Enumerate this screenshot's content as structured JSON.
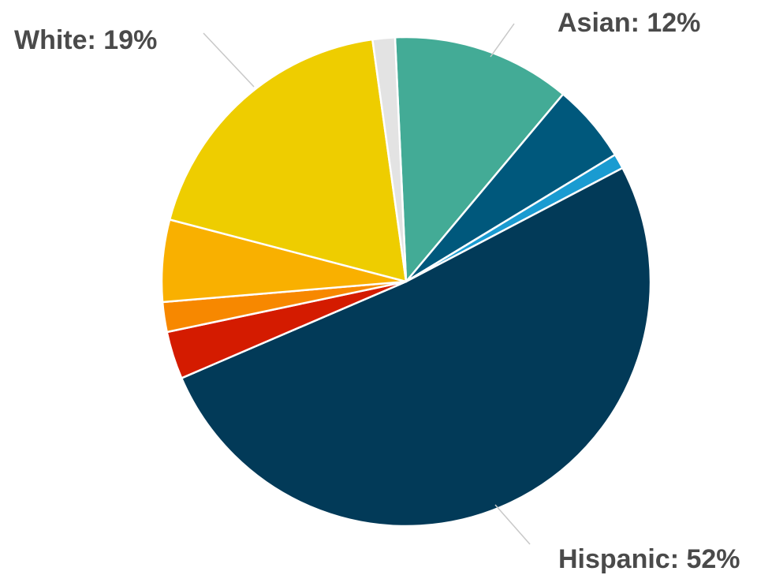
{
  "chart_data": {
    "type": "pie",
    "start_angle_deg": -2.6,
    "direction": "clockwise",
    "slices": [
      {
        "label": "Asian: 12%",
        "value": 12.0,
        "color": "#43ab96"
      },
      {
        "label": "",
        "value": 5.3,
        "color": "#00587c"
      },
      {
        "label": "",
        "value": 1.0,
        "color": "#1a9bd1"
      },
      {
        "label": "Hispanic: 52%",
        "value": 52.0,
        "color": "#023a58"
      },
      {
        "label": "",
        "value": 3.2,
        "color": "#d41b00"
      },
      {
        "label": "",
        "value": 2.0,
        "color": "#f78800"
      },
      {
        "label": "",
        "value": 5.5,
        "color": "#f9b000"
      },
      {
        "label": "White: 19%",
        "value": 19.0,
        "color": "#eecd00"
      },
      {
        "label": "",
        "value": 1.5,
        "color": "#e3e3e3"
      }
    ]
  }
}
